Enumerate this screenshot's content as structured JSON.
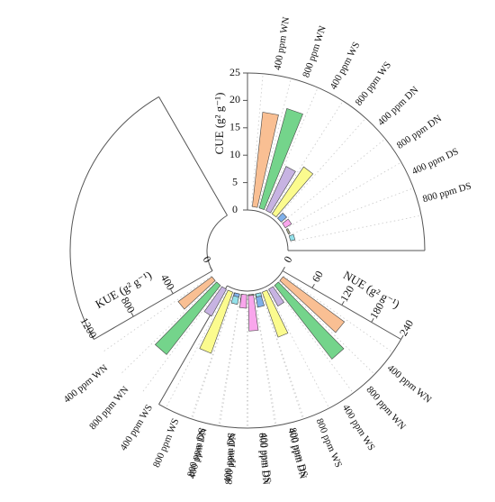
{
  "chart_data": {
    "type": "bar",
    "layout": "circular",
    "categories": [
      "400 ppm WN",
      "800 ppm WN",
      "400 ppm WS",
      "800 ppm WS",
      "400 ppm DN",
      "800 ppm DN",
      "400 ppm DS",
      "800 ppm DS"
    ],
    "colors": [
      "#f9bf93",
      "#74d48b",
      "#c7b3e2",
      "#fbfb8e",
      "#7fb0ea",
      "#f9a6ec",
      "#a8a88b",
      "#93e1ea"
    ],
    "panels": [
      {
        "name": "CUE",
        "axis_label": "CUE (g² g⁻¹)",
        "lim": [
          0,
          25
        ],
        "ticks": [
          "0",
          "5",
          "10",
          "15",
          "20",
          "25"
        ],
        "values": [
          18,
          19.5,
          9.5,
          11,
          2,
          2,
          1,
          1.5
        ]
      },
      {
        "name": "NUE",
        "axis_label": "NUE (g² g⁻¹)",
        "lim": [
          0,
          240
        ],
        "ticks": [
          "0",
          "60",
          "120",
          "180",
          "240"
        ],
        "values": [
          140,
          170,
          40,
          90,
          30,
          70,
          20,
          25
        ]
      },
      {
        "name": "KUE",
        "axis_label": "KUE (g² g⁻¹)",
        "lim": [
          0,
          1200
        ],
        "ticks": [
          "0",
          "400",
          "800",
          "1200"
        ],
        "values": [
          400,
          800,
          300,
          600,
          60,
          150,
          40,
          60
        ]
      }
    ]
  }
}
